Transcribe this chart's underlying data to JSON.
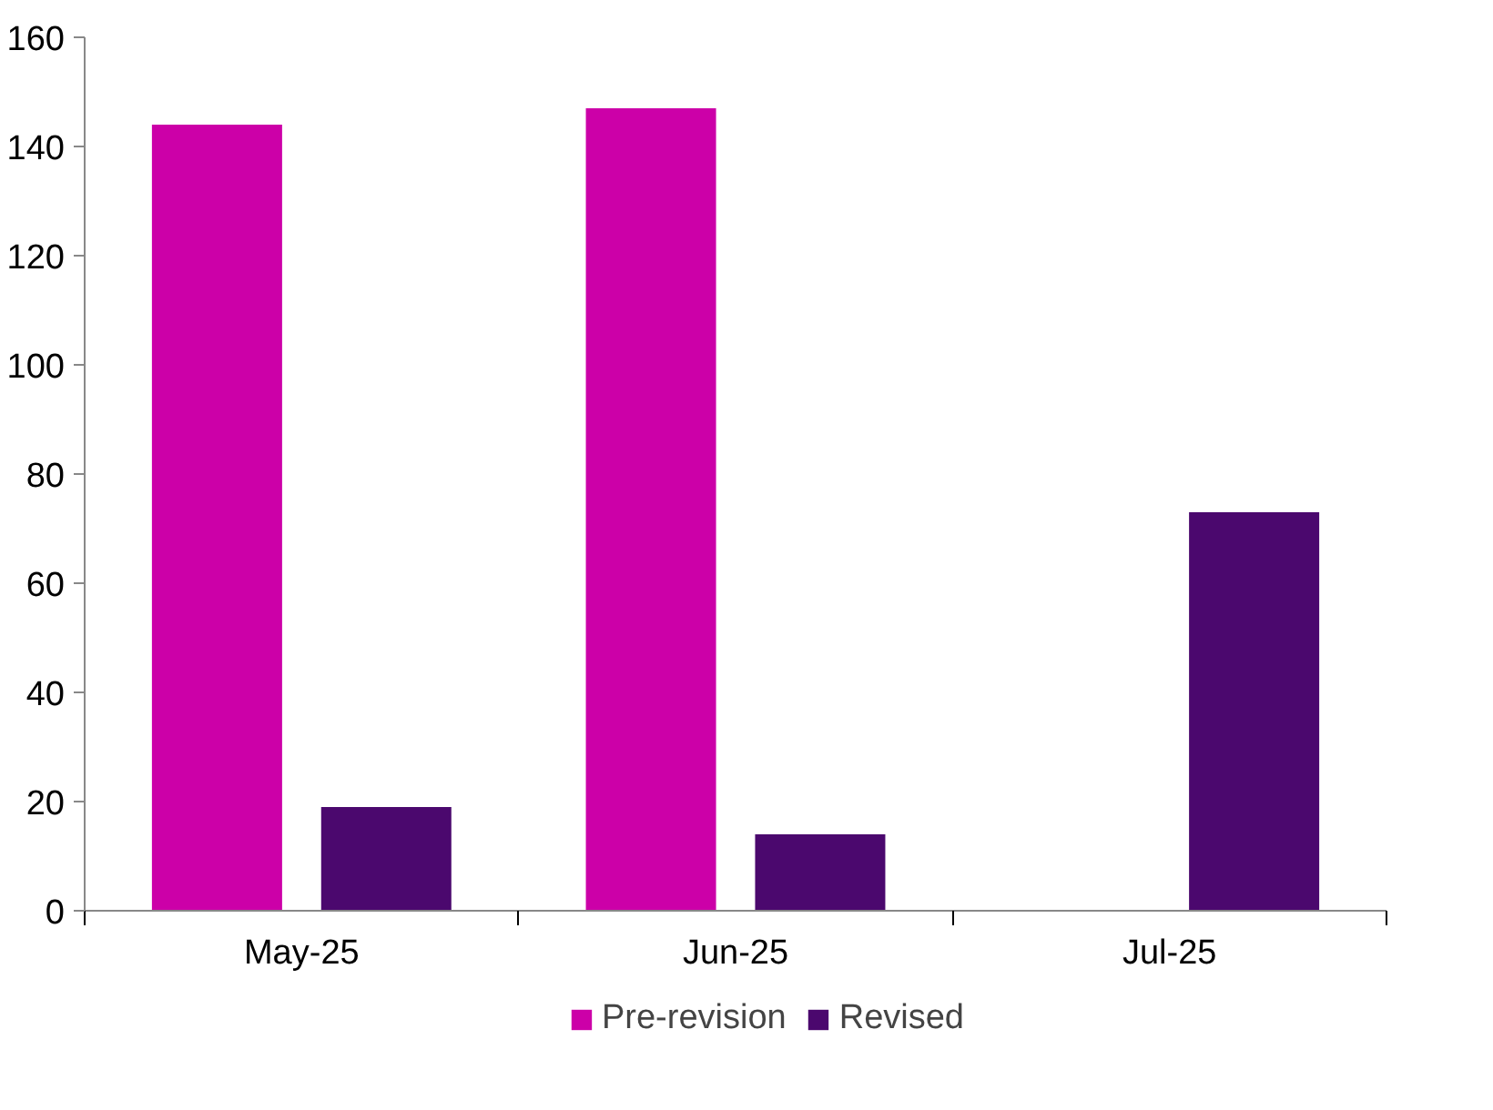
{
  "chart_data": {
    "type": "bar",
    "categories": [
      "May-25",
      "Jun-25",
      "Jul-25"
    ],
    "series": [
      {
        "name": "Pre-revision",
        "color": "#cc00a8",
        "values": [
          144,
          147,
          null
        ]
      },
      {
        "name": "Revised",
        "color": "#4b086e",
        "values": [
          19,
          14,
          73
        ]
      }
    ],
    "ylim": [
      0,
      160
    ],
    "yticks": [
      0,
      20,
      40,
      60,
      80,
      100,
      120,
      140,
      160
    ],
    "grid": false,
    "legend": "bottom"
  }
}
